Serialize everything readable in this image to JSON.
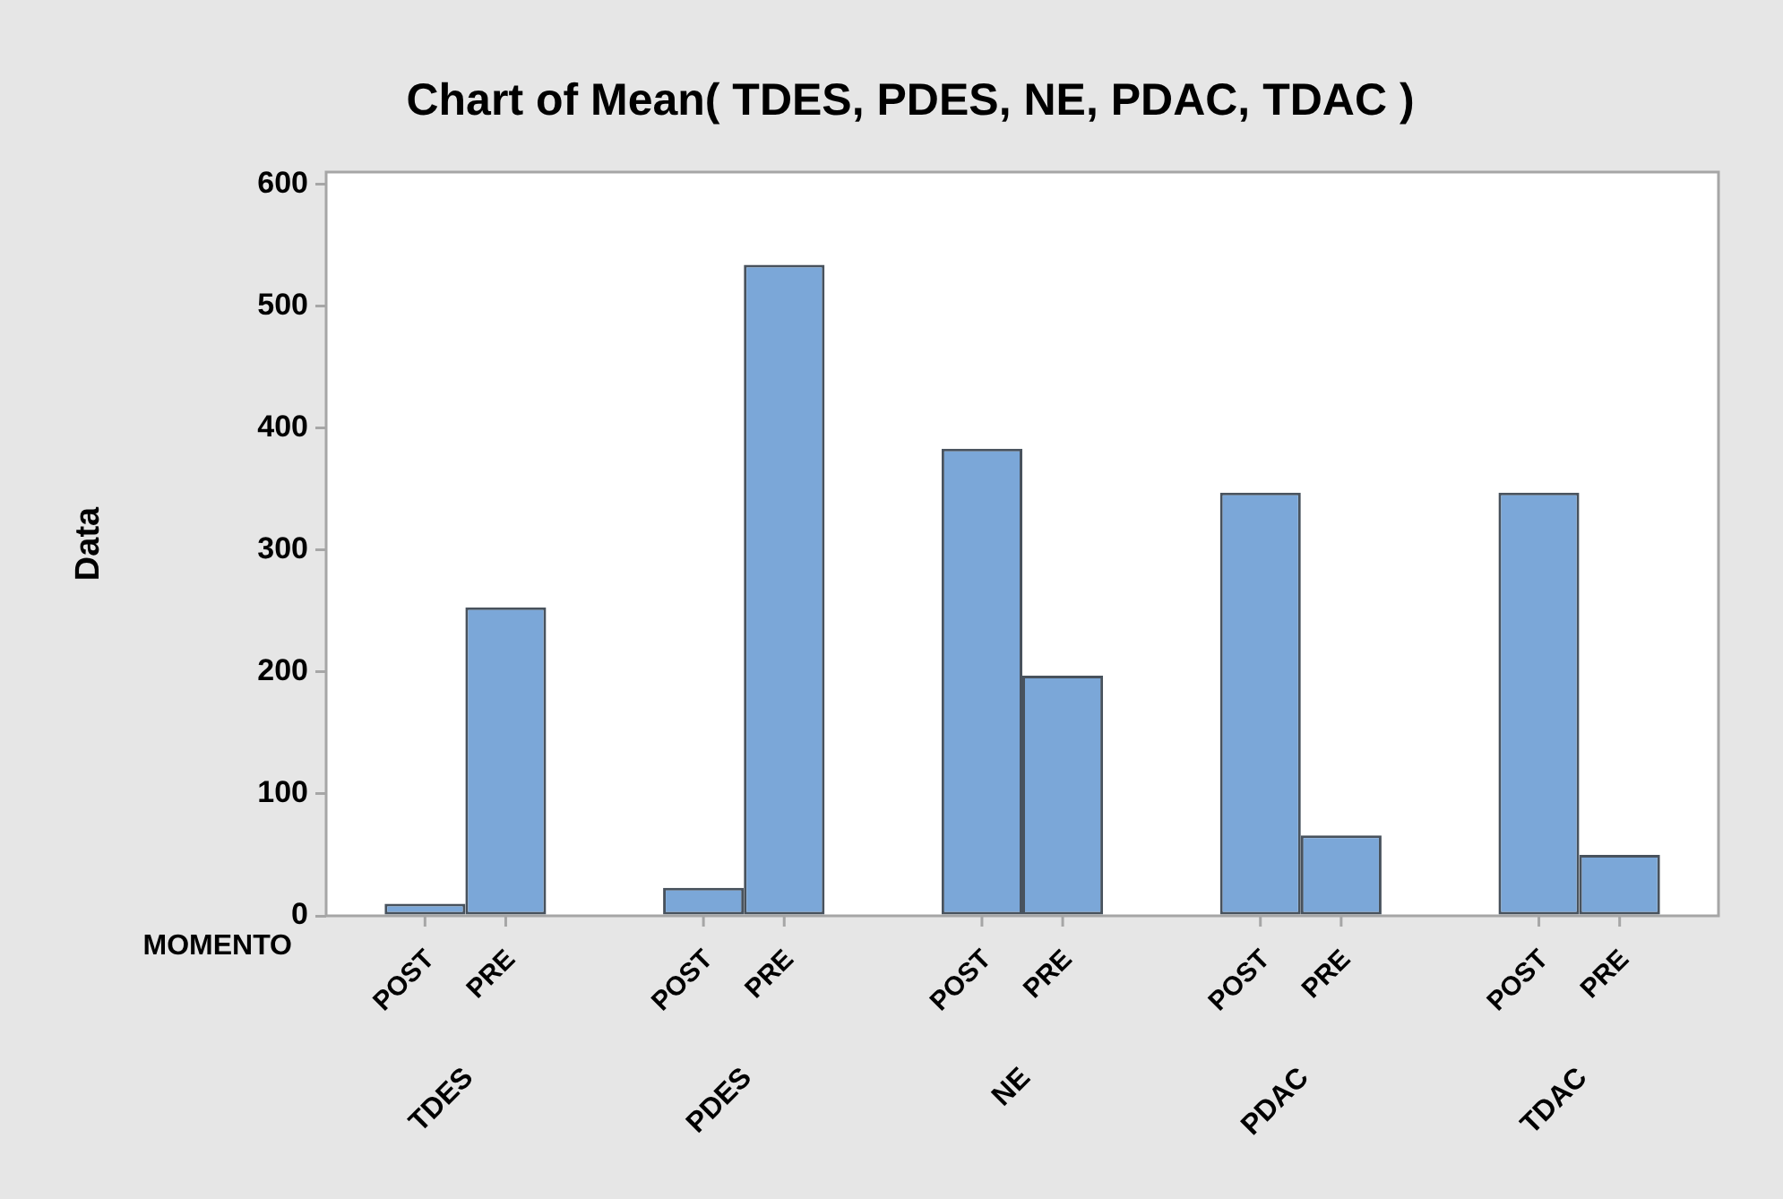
{
  "chart_data": {
    "type": "bar",
    "title": "Chart of Mean( TDES, PDES, NE, PDAC, TDAC )",
    "xlabel": "MOMENTO",
    "ylabel": "Data",
    "categories": [
      "TDES",
      "PDES",
      "NE",
      "PDAC",
      "TDAC"
    ],
    "series": [
      {
        "name": "POST",
        "color": "#7ba7d8",
        "values": [
          10,
          23,
          383,
          347,
          347
        ]
      },
      {
        "name": "PRE",
        "color": "#7ba7d8",
        "values": [
          253,
          534,
          197,
          66,
          50
        ]
      }
    ],
    "ylim": [
      0,
      610
    ],
    "yticks": [
      0,
      100,
      200,
      300,
      400,
      500,
      600
    ]
  }
}
